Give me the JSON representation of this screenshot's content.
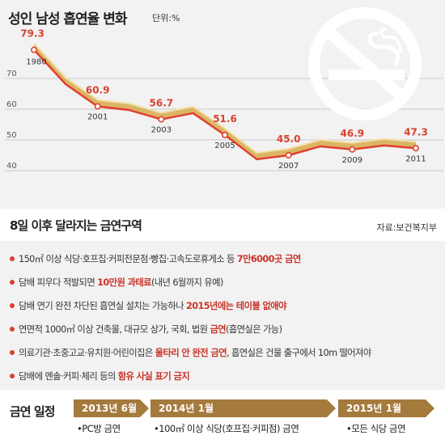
{
  "chart_panel": {
    "title": "성인 남성 흡연율 변화",
    "unit": "단위:%",
    "no_smoking_icon": "no-smoking-icon"
  },
  "chart_data": {
    "type": "line",
    "title": "성인 남성 흡연율 변화",
    "unit": "단위:%",
    "y_ticks": [
      "70",
      "60",
      "50",
      "40"
    ],
    "ylim": [
      40,
      80
    ],
    "series": [
      {
        "values": [
          79.3,
          68.1,
          60.9,
          59.7,
          56.7,
          58.7,
          51.6,
          43.7,
          45.0,
          47.9,
          46.9,
          48.2,
          47.3
        ],
        "labels": [
          "79.3",
          "",
          "60.9",
          "",
          "56.7",
          "",
          "51.6",
          "",
          "45.0",
          "",
          "46.9",
          "",
          "47.3"
        ]
      }
    ],
    "year_labels": [
      "1980",
      "",
      "2001",
      "",
      "2003",
      "",
      "2005",
      "",
      "2007",
      "",
      "2009",
      "",
      "2011"
    ],
    "line_color": "#e0402f",
    "ribbon_color": "#d8ae55",
    "grid": true
  },
  "section": {
    "title": "8일 이후 달라지는 금연구역",
    "source": "자료:보건복지부"
  },
  "notes": [
    {
      "parts": [
        {
          "t": "150㎡ 이상 식당·호프집·커피전문점·빵집·고속도로휴게소 등 ",
          "hl": false
        },
        {
          "t": "7만6000곳 금연",
          "hl": true
        }
      ]
    },
    {
      "parts": [
        {
          "t": "담배 피우다 적발되면 ",
          "hl": false
        },
        {
          "t": "10만원 과태료",
          "hl": true
        },
        {
          "t": "(내년 6월까지 유예)",
          "hl": false
        }
      ]
    },
    {
      "parts": [
        {
          "t": "담배 연기 완전 차단된 흡연실 설치는 가능하나 ",
          "hl": false
        },
        {
          "t": "2015년에는 테이블 없애야",
          "hl": true
        }
      ]
    },
    {
      "parts": [
        {
          "t": "연면적 1000㎡ 이상 건축물, 대규모 상가, 국회, 법원 ",
          "hl": false
        },
        {
          "t": "금연",
          "hl": true
        },
        {
          "t": "(흡연실은 가능)",
          "hl": false
        }
      ]
    },
    {
      "parts": [
        {
          "t": "의료기관·초중고교·유치원·어린이집은 ",
          "hl": false
        },
        {
          "t": "울타리 안 완전 금연",
          "hl": true
        },
        {
          "t": ", 흡연실은 건물 출구에서 10m 떨어져야",
          "hl": false
        }
      ]
    },
    {
      "parts": [
        {
          "t": "담배에 멘솔·커피·체리 등의 ",
          "hl": false
        },
        {
          "t": "함유 사실 표기 금지",
          "hl": true
        }
      ]
    }
  ],
  "schedule": {
    "label": "금연 일정",
    "phases": [
      {
        "date": "2013년 6월",
        "item": "•PC방 금연"
      },
      {
        "date": "2014년 1월",
        "item": "•100㎡ 이상 식당(호프집·커피점) 금연"
      },
      {
        "date": "2015년 1월",
        "item": "•모든 식당 금연"
      }
    ]
  }
}
